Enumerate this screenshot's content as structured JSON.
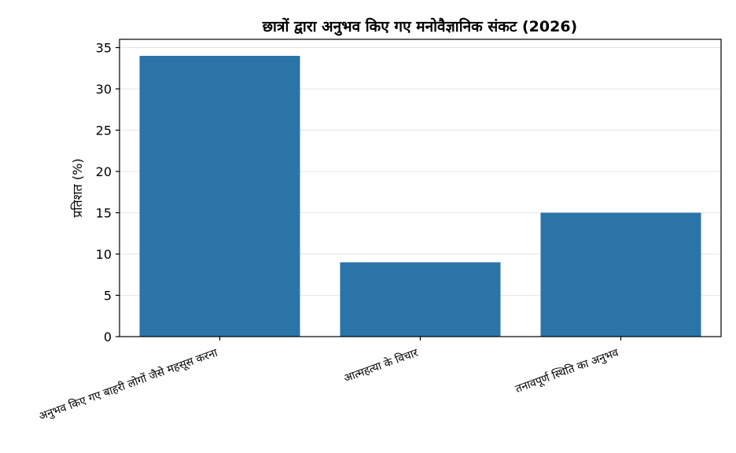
{
  "chart_data": {
    "type": "bar",
    "title": "छात्रों द्वारा अनुभव किए गए मनोवैज्ञानिक संकट (2026)",
    "xlabel": "",
    "ylabel": "प्रतिशत (%)",
    "categories": [
      "अनुभव किए गए बाहरी लोगों जैसे महसूस करना",
      "आत्महत्या के विचार",
      "तनावपूर्ण स्थिति का अनुभव"
    ],
    "values": [
      34,
      9,
      15
    ],
    "ylim": [
      0,
      36
    ],
    "yticks": [
      0,
      5,
      10,
      15,
      20,
      25,
      30,
      35
    ],
    "grid": "horizontal",
    "bar_color": "#2a74a8"
  }
}
